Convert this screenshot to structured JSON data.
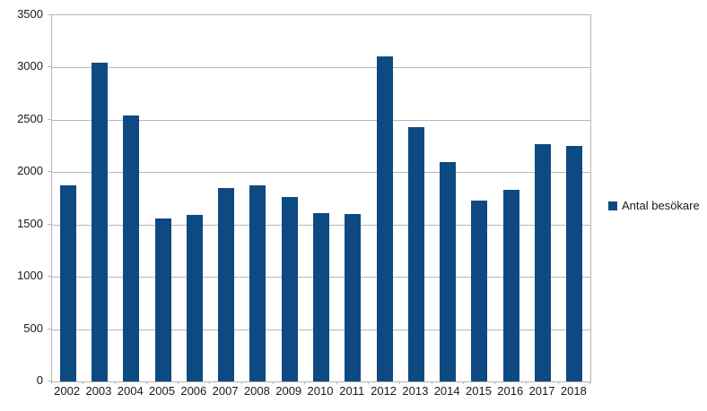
{
  "chart_data": {
    "type": "bar",
    "title": "",
    "categories": [
      "2002",
      "2003",
      "2004",
      "2005",
      "2006",
      "2007",
      "2008",
      "2009",
      "2010",
      "2011",
      "2012",
      "2013",
      "2014",
      "2015",
      "2016",
      "2017",
      "2018"
    ],
    "series": [
      {
        "name": "Antal besökare",
        "values": [
          1870,
          3050,
          2540,
          1560,
          1590,
          1850,
          1870,
          1760,
          1610,
          1600,
          3110,
          2430,
          2100,
          1730,
          1830,
          2270,
          2250
        ]
      }
    ],
    "xlabel": "",
    "ylabel": "",
    "ylim": [
      0,
      3500
    ],
    "ytick_step": 500,
    "y_tick_labels": [
      "0",
      "500",
      "1000",
      "1500",
      "2000",
      "2500",
      "3000",
      "3500"
    ],
    "grid": "horizontal",
    "legend_position": "right",
    "colors": {
      "bar": "#0d4a82",
      "gridline": "#b8b8b8",
      "plot_border": "#b4b4b4",
      "text": "#1a1a1a",
      "background": "#ffffff"
    }
  },
  "legend": {
    "label": "Antal besökare"
  }
}
